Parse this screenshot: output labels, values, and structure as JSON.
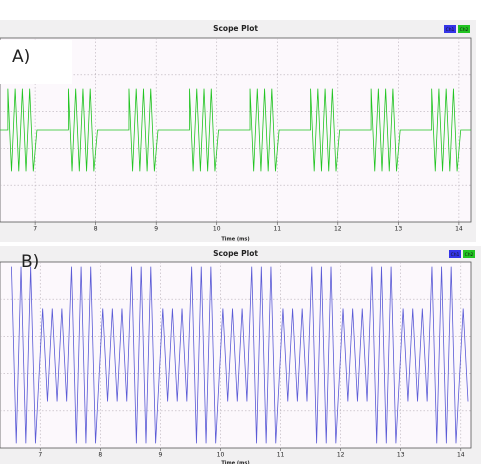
{
  "chart_data": [
    {
      "type": "line",
      "panel_label": "A)",
      "title": "Scope Plot",
      "x_label": "Time (ms)",
      "legend": [
        {
          "name": "Ch1",
          "color": "#3434e8"
        },
        {
          "name": "Ch2",
          "color": "#22c422"
        }
      ],
      "color": "#22c422",
      "xlim": [
        6.42,
        14.2
      ],
      "xticks": [
        7,
        8,
        9,
        10,
        11,
        12,
        13,
        14
      ],
      "ylim": [
        -1,
        1
      ],
      "grid": true,
      "x": [
        6.42,
        6.55,
        6.55,
        6.61,
        6.67,
        6.73,
        6.79,
        6.85,
        6.91,
        6.97,
        7.03,
        7.55,
        7.55,
        7.61,
        7.67,
        7.73,
        7.79,
        7.85,
        7.91,
        7.97,
        8.03,
        8.55,
        8.55,
        8.61,
        8.67,
        8.73,
        8.79,
        8.85,
        8.91,
        8.97,
        9.03,
        9.55,
        9.55,
        9.61,
        9.67,
        9.73,
        9.79,
        9.85,
        9.91,
        9.97,
        10.03,
        10.55,
        10.55,
        10.61,
        10.67,
        10.73,
        10.79,
        10.85,
        10.91,
        10.97,
        11.03,
        11.55,
        11.55,
        11.61,
        11.67,
        11.73,
        11.79,
        11.85,
        11.91,
        11.97,
        12.03,
        12.55,
        12.55,
        12.61,
        12.67,
        12.73,
        12.79,
        12.85,
        12.91,
        12.97,
        13.03,
        13.55,
        13.55,
        13.61,
        13.67,
        13.73,
        13.79,
        13.85,
        13.91,
        13.97,
        14.03,
        14.2
      ],
      "values": [
        0,
        0,
        0.45,
        -0.45,
        0.45,
        -0.45,
        0.45,
        -0.45,
        0.45,
        -0.45,
        0,
        0,
        0.45,
        -0.45,
        0.45,
        -0.45,
        0.45,
        -0.45,
        0.45,
        -0.45,
        0,
        0,
        0.45,
        -0.45,
        0.45,
        -0.45,
        0.45,
        -0.45,
        0.45,
        -0.45,
        0,
        0,
        0.45,
        -0.45,
        0.45,
        -0.45,
        0.45,
        -0.45,
        0.45,
        -0.45,
        0,
        0,
        0.45,
        -0.45,
        0.45,
        -0.45,
        0.45,
        -0.45,
        0.45,
        -0.45,
        0,
        0,
        0.45,
        -0.45,
        0.45,
        -0.45,
        0.45,
        -0.45,
        0.45,
        -0.45,
        0,
        0,
        0.45,
        -0.45,
        0.45,
        -0.45,
        0.45,
        -0.45,
        0.45,
        -0.45,
        0,
        0,
        0.45,
        -0.45,
        0.45,
        -0.45,
        0.45,
        -0.45,
        0.45,
        -0.45,
        0,
        0
      ]
    },
    {
      "type": "line",
      "panel_label": "B)",
      "title": "Scope Plot",
      "x_label": "Time (ms)",
      "legend": [
        {
          "name": "Ch1",
          "color": "#3434e8"
        },
        {
          "name": "Ch2",
          "color": "#22c422"
        }
      ],
      "color": "#5b5bd6",
      "xlim": [
        6.33,
        14.17
      ],
      "xticks": [
        7,
        8,
        9,
        10,
        11,
        12,
        13,
        14
      ],
      "ylim": [
        -1,
        1
      ],
      "grid": true,
      "x": [
        6.52,
        6.6,
        6.68,
        6.76,
        6.84,
        6.92,
        7.04,
        7.12,
        7.2,
        7.28,
        7.36,
        7.44,
        7.52,
        7.6,
        7.68,
        7.76,
        7.84,
        7.92,
        8.04,
        8.12,
        8.2,
        8.28,
        8.36,
        8.44,
        8.52,
        8.6,
        8.68,
        8.76,
        8.84,
        8.92,
        9.04,
        9.12,
        9.2,
        9.28,
        9.36,
        9.44,
        9.52,
        9.6,
        9.68,
        9.76,
        9.84,
        9.92,
        10.04,
        10.12,
        10.2,
        10.28,
        10.36,
        10.44,
        10.52,
        10.6,
        10.68,
        10.76,
        10.84,
        10.92,
        11.04,
        11.12,
        11.2,
        11.28,
        11.36,
        11.44,
        11.52,
        11.6,
        11.68,
        11.76,
        11.84,
        11.92,
        12.04,
        12.12,
        12.2,
        12.28,
        12.36,
        12.44,
        12.52,
        12.6,
        12.68,
        12.76,
        12.84,
        12.92,
        13.04,
        13.12,
        13.2,
        13.28,
        13.36,
        13.44,
        13.52,
        13.6,
        13.68,
        13.76,
        13.84,
        13.92,
        14.04,
        14.12
      ],
      "values": [
        0.95,
        -0.95,
        0.95,
        -0.95,
        0.95,
        -0.95,
        0.5,
        -0.5,
        0.5,
        -0.5,
        0.5,
        -0.5,
        0.95,
        -0.95,
        0.95,
        -0.95,
        0.95,
        -0.95,
        0.5,
        -0.5,
        0.5,
        -0.5,
        0.5,
        -0.5,
        0.95,
        -0.95,
        0.95,
        -0.95,
        0.95,
        -0.95,
        0.5,
        -0.5,
        0.5,
        -0.5,
        0.5,
        -0.5,
        0.95,
        -0.95,
        0.95,
        -0.95,
        0.95,
        -0.95,
        0.5,
        -0.5,
        0.5,
        -0.5,
        0.5,
        -0.5,
        0.95,
        -0.95,
        0.95,
        -0.95,
        0.95,
        -0.95,
        0.5,
        -0.5,
        0.5,
        -0.5,
        0.5,
        -0.5,
        0.95,
        -0.95,
        0.95,
        -0.95,
        0.95,
        -0.95,
        0.5,
        -0.5,
        0.5,
        -0.5,
        0.5,
        -0.5,
        0.95,
        -0.95,
        0.95,
        -0.95,
        0.95,
        -0.95,
        0.5,
        -0.5,
        0.5,
        -0.5,
        0.5,
        -0.5,
        0.95,
        -0.95,
        0.95,
        -0.95,
        0.95,
        -0.95,
        0.5,
        -0.5
      ]
    }
  ]
}
